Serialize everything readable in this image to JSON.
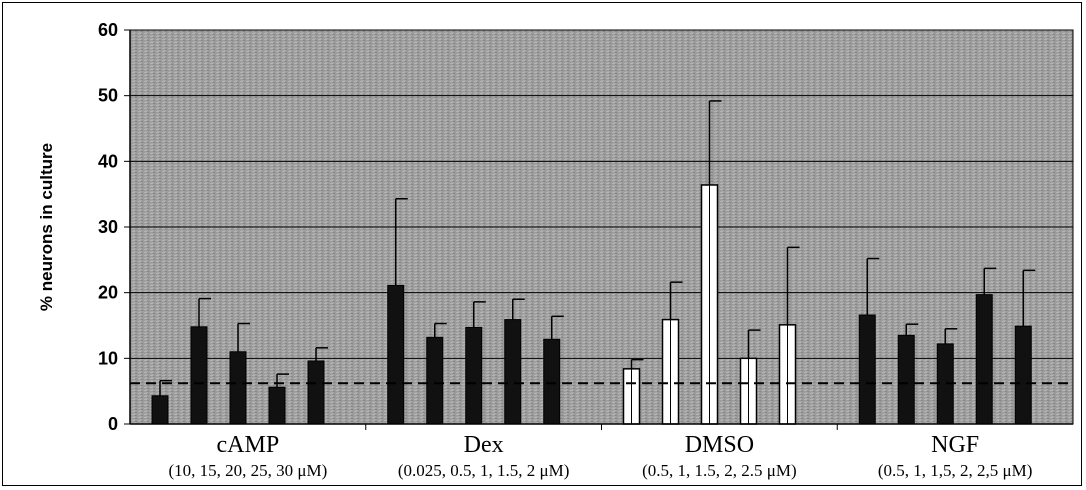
{
  "chart_data": {
    "type": "bar",
    "ylabel": "% neurons in culture",
    "xlabel": "",
    "ylim": [
      0,
      60
    ],
    "yticks": [
      0,
      10,
      20,
      30,
      40,
      50,
      60
    ],
    "grid": true,
    "legend": "none",
    "baseline": {
      "value": 6.2,
      "style": "dashed"
    },
    "colors": {
      "plot_background": "#9a9a9a",
      "bar_dark": "#111111",
      "bar_light": "#ffffff"
    },
    "groups": [
      {
        "label": "cAMP",
        "sublabel": "(10, 15, 20, 25, 30 μM)",
        "fill": "dark",
        "values": [
          4.3,
          14.8,
          11.0,
          5.6,
          9.6
        ],
        "errors": [
          6.6,
          19.1,
          15.3,
          7.6,
          11.6
        ]
      },
      {
        "label": "Dex",
        "sublabel": "(0.025, 0.5, 1, 1.5, 2 μM)",
        "fill": "dark",
        "values": [
          21.1,
          13.2,
          14.7,
          15.9,
          12.9
        ],
        "errors": [
          34.3,
          15.3,
          18.6,
          19.0,
          16.4
        ]
      },
      {
        "label": "DMSO",
        "sublabel": "(0.5, 1, 1.5, 2, 2.5 μM)",
        "fill": "light",
        "values": [
          8.4,
          15.9,
          36.4,
          10.0,
          15.1
        ],
        "errors": [
          9.8,
          21.6,
          49.2,
          14.3,
          26.9
        ]
      },
      {
        "label": "NGF",
        "sublabel": "(0.5, 1, 1,5, 2, 2,5 μM)",
        "fill": "dark",
        "values": [
          16.6,
          13.5,
          12.2,
          19.7,
          14.9
        ],
        "errors": [
          25.2,
          15.2,
          14.5,
          23.7,
          23.4
        ]
      }
    ]
  }
}
